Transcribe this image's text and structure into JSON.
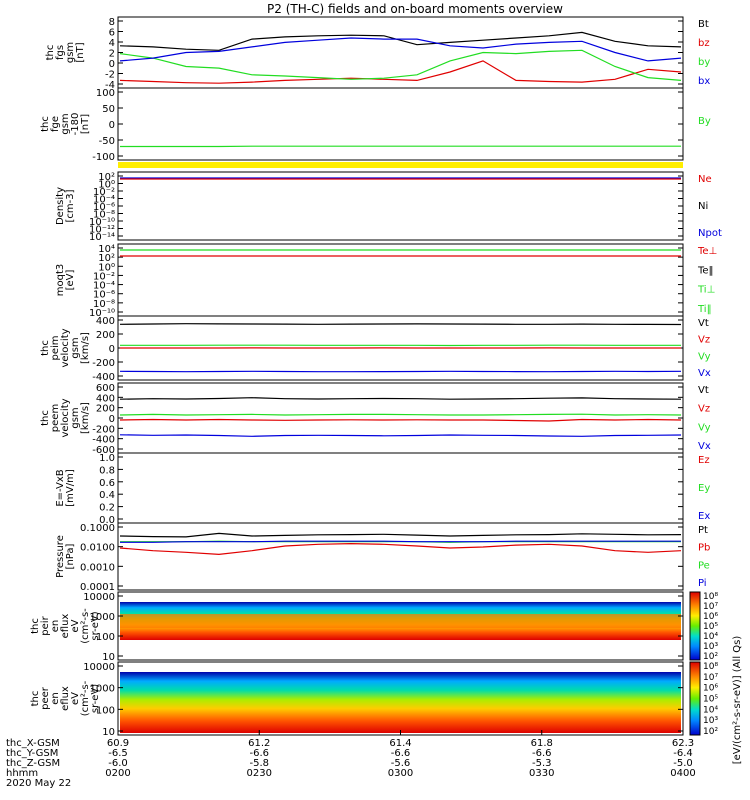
{
  "title": "P2 (TH-C) fields and on-board moments overview",
  "colors": {
    "black": "#000000",
    "red": "#e00000",
    "green": "#22dd22",
    "blue": "#0000dd",
    "yellow": "#ffee00"
  },
  "chart_data": [
    {
      "type": "line",
      "panel": "fgs",
      "ylabel": [
        "thc",
        "fgs",
        "gsm",
        "[nT]"
      ],
      "yticks": [
        "8",
        "6",
        "4",
        "2",
        "0",
        "-2",
        "-4"
      ],
      "ylim": [
        -4,
        8
      ],
      "series": [
        {
          "name": "Bt",
          "color": "black",
          "values": [
            3.2,
            3.0,
            2.6,
            2.4,
            4.4,
            4.8,
            5.0,
            5.1,
            5.0,
            3.4,
            3.8,
            4.2,
            4.6,
            5.0,
            5.6,
            4.0,
            3.2,
            3.0
          ]
        },
        {
          "name": "bz",
          "color": "red",
          "values": [
            -3.0,
            -3.2,
            -3.4,
            -3.5,
            -3.3,
            -3.0,
            -2.8,
            -2.6,
            -2.8,
            -3.0,
            -1.5,
            0.5,
            -3.0,
            -3.2,
            -3.3,
            -2.8,
            -1.0,
            -1.5
          ]
        },
        {
          "name": "by",
          "color": "green",
          "values": [
            1.8,
            1.0,
            -0.5,
            -0.8,
            -2.0,
            -2.2,
            -2.5,
            -2.8,
            -2.6,
            -2.0,
            0.5,
            2.0,
            1.8,
            2.2,
            2.4,
            -0.5,
            -2.5,
            -3.0
          ]
        },
        {
          "name": "bx",
          "color": "blue",
          "values": [
            0.5,
            1.0,
            2.0,
            2.2,
            3.0,
            3.8,
            4.2,
            4.6,
            4.4,
            4.4,
            3.2,
            2.8,
            3.5,
            3.8,
            4.0,
            2.0,
            0.5,
            1.0
          ]
        }
      ]
    },
    {
      "type": "line",
      "panel": "fge",
      "ylabel": [
        "thc",
        "fge",
        "gsm",
        "-180",
        "[nT]"
      ],
      "yticks": [
        "100",
        "50",
        "0",
        "-50",
        "-100"
      ],
      "ylim": [
        -125,
        100
      ],
      "series": [
        {
          "name": "By",
          "color": "green",
          "values": [
            -87,
            -87,
            -87,
            -87,
            -86,
            -86,
            -86,
            -86,
            -86,
            -86,
            -86,
            -86,
            -86,
            -86,
            -86,
            -86,
            -86,
            -86
          ]
        }
      ]
    },
    {
      "type": "line",
      "panel": "density",
      "ylabel": [
        "Density",
        "[cm-3]"
      ],
      "yticks": [
        "10²",
        "10⁰",
        "10⁻²",
        "10⁻⁴",
        "10⁻⁶",
        "10⁻⁸",
        "10⁻¹⁰",
        "10⁻¹²",
        "10⁻¹⁴"
      ],
      "series": [
        {
          "name": "Ne",
          "color": "red"
        },
        {
          "name": "Ni",
          "color": "black"
        },
        {
          "name": "Npot",
          "color": "blue"
        }
      ]
    },
    {
      "type": "line",
      "panel": "temperature",
      "ylabel": [
        "moqt3",
        "[eV]"
      ],
      "yticks": [
        "10⁴",
        "10²",
        "10⁰",
        "10⁻²",
        "10⁻⁴",
        "10⁻⁶",
        "10⁻⁸",
        "10⁻¹⁰"
      ],
      "series": [
        {
          "name": "Te⊥",
          "color": "red"
        },
        {
          "name": "Te‖",
          "color": "black"
        },
        {
          "name": "Ti⊥",
          "color": "green"
        },
        {
          "name": "Ti‖",
          "color": "green"
        }
      ]
    },
    {
      "type": "line",
      "panel": "peim",
      "ylabel": [
        "thc",
        "peim",
        "velocity",
        "gsm",
        "[km/s]"
      ],
      "yticks": [
        "400",
        "200",
        "0",
        "-200",
        "-400"
      ],
      "ylim": [
        -450,
        450
      ],
      "series": [
        {
          "name": "Vt",
          "color": "black",
          "values": [
            355,
            360,
            365,
            362,
            360,
            358,
            356,
            358,
            360,
            362,
            360,
            358,
            356,
            355,
            358,
            356,
            354,
            352
          ]
        },
        {
          "name": "Vz",
          "color": "red",
          "values": [
            0,
            0,
            0,
            0,
            2,
            0,
            0,
            0,
            2,
            0,
            0,
            0,
            0,
            2,
            0,
            0,
            0,
            0
          ]
        },
        {
          "name": "Vy",
          "color": "green",
          "values": [
            40,
            40,
            40,
            42,
            42,
            42,
            40,
            40,
            40,
            40,
            38,
            40,
            40,
            42,
            42,
            40,
            40,
            40
          ]
        },
        {
          "name": "Vx",
          "color": "blue",
          "values": [
            -350,
            -352,
            -355,
            -352,
            -350,
            -352,
            -355,
            -356,
            -354,
            -352,
            -350,
            -352,
            -354,
            -355,
            -352,
            -350,
            -352,
            -350
          ]
        }
      ]
    },
    {
      "type": "line",
      "panel": "peem",
      "ylabel": [
        "thc",
        "peem",
        "velocity",
        "gsm",
        "[km/s]"
      ],
      "yticks": [
        "600",
        "400",
        "200",
        "0",
        "-200",
        "-400",
        "-600"
      ],
      "ylim": [
        -650,
        650
      ],
      "series": [
        {
          "name": "Vt",
          "color": "black",
          "values": [
            370,
            380,
            375,
            385,
            400,
            380,
            375,
            380,
            385,
            380,
            370,
            375,
            380,
            390,
            395,
            380,
            375,
            370
          ]
        },
        {
          "name": "Vz",
          "color": "red",
          "values": [
            -40,
            -30,
            -40,
            -30,
            -40,
            -45,
            -40,
            -35,
            -40,
            -35,
            -40,
            -40,
            -50,
            -60,
            -30,
            -40,
            -30,
            -40
          ]
        },
        {
          "name": "Vy",
          "color": "green",
          "values": [
            60,
            70,
            60,
            65,
            70,
            60,
            65,
            70,
            70,
            65,
            60,
            60,
            65,
            70,
            75,
            60,
            65,
            60
          ]
        },
        {
          "name": "Vx",
          "color": "blue",
          "values": [
            -330,
            -340,
            -335,
            -345,
            -360,
            -345,
            -340,
            -345,
            -350,
            -345,
            -335,
            -340,
            -345,
            -355,
            -360,
            -345,
            -340,
            -335
          ]
        }
      ]
    },
    {
      "type": "line",
      "panel": "efield",
      "ylabel": [
        "E=-VxB",
        "[mV/m]"
      ],
      "yticks": [
        "1.0",
        "0.8",
        "0.6",
        "0.4",
        "0.2",
        "0.0"
      ],
      "ylim": [
        0,
        1
      ],
      "series": [
        {
          "name": "Ez",
          "color": "red"
        },
        {
          "name": "Ey",
          "color": "green"
        },
        {
          "name": "Ex",
          "color": "blue"
        }
      ]
    },
    {
      "type": "line",
      "panel": "pressure",
      "ylabel": [
        "Pressure",
        "[nPa]"
      ],
      "yticks": [
        "0.1000",
        "0.0100",
        "0.0010",
        "0.0001"
      ],
      "log": true,
      "series": [
        {
          "name": "Pt",
          "color": "black",
          "values": [
            0.03,
            0.028,
            0.027,
            0.04,
            0.03,
            0.032,
            0.034,
            0.035,
            0.036,
            0.033,
            0.03,
            0.032,
            0.034,
            0.035,
            0.038,
            0.036,
            0.034,
            0.035
          ]
        },
        {
          "name": "Pb",
          "color": "red",
          "values": [
            0.008,
            0.006,
            0.005,
            0.004,
            0.006,
            0.01,
            0.012,
            0.013,
            0.012,
            0.01,
            0.008,
            0.009,
            0.011,
            0.012,
            0.01,
            0.006,
            0.005,
            0.006
          ]
        },
        {
          "name": "Pe",
          "color": "green",
          "values": [
            0.016,
            0.016,
            0.016,
            0.017,
            0.016,
            0.016,
            0.016,
            0.016,
            0.016,
            0.016,
            0.015,
            0.016,
            0.016,
            0.016,
            0.016,
            0.016,
            0.016,
            0.016
          ]
        },
        {
          "name": "Pi",
          "color": "blue",
          "values": [
            0.015,
            0.015,
            0.016,
            0.016,
            0.016,
            0.017,
            0.017,
            0.017,
            0.017,
            0.016,
            0.016,
            0.016,
            0.017,
            0.017,
            0.017,
            0.017,
            0.017,
            0.017
          ]
        }
      ]
    },
    {
      "type": "heatmap",
      "panel": "peir",
      "ylabel": [
        "thc",
        "peir",
        "en",
        "eflux",
        "eV",
        "(cm²-s-",
        "sr-eV)"
      ],
      "yticks": [
        "10000",
        "1000",
        "100",
        "10"
      ]
    },
    {
      "type": "heatmap",
      "panel": "peer",
      "ylabel": [
        "thc",
        "peer",
        "en",
        "eflux",
        "eV",
        "(cm²-s-",
        "sr-eV)"
      ],
      "yticks": [
        "10000",
        "1000",
        "100",
        "10"
      ]
    }
  ],
  "colorbar": {
    "label": "[eV/(cm²-s-sr-eV)] (All Qs)",
    "ticks_top": [
      "10⁸",
      "10⁷",
      "10⁶",
      "10⁵",
      "10⁴",
      "10³",
      "10²"
    ],
    "ticks_bottom": [
      "10⁸",
      "10⁷",
      "10⁶",
      "10⁵",
      "10⁴",
      "10³",
      "10²"
    ]
  },
  "xaxis": {
    "row_labels": [
      "thc_X-GSM",
      "thc_Y-GSM",
      "thc_Z-GSM",
      "hhmm",
      "2020 May 22"
    ],
    "ticks": [
      {
        "x": "60.9",
        "y": "-6.5",
        "z": "-6.0",
        "hhmm": "0200"
      },
      {
        "x": "61.2",
        "y": "-6.6",
        "z": "-5.8",
        "hhmm": "0230"
      },
      {
        "x": "61.4",
        "y": "-6.6",
        "z": "-5.6",
        "hhmm": "0300"
      },
      {
        "x": "61.8",
        "y": "-6.6",
        "z": "-5.3",
        "hhmm": "0330"
      },
      {
        "x": "62.3",
        "y": "-6.4",
        "z": "-5.0",
        "hhmm": "0400"
      }
    ]
  }
}
